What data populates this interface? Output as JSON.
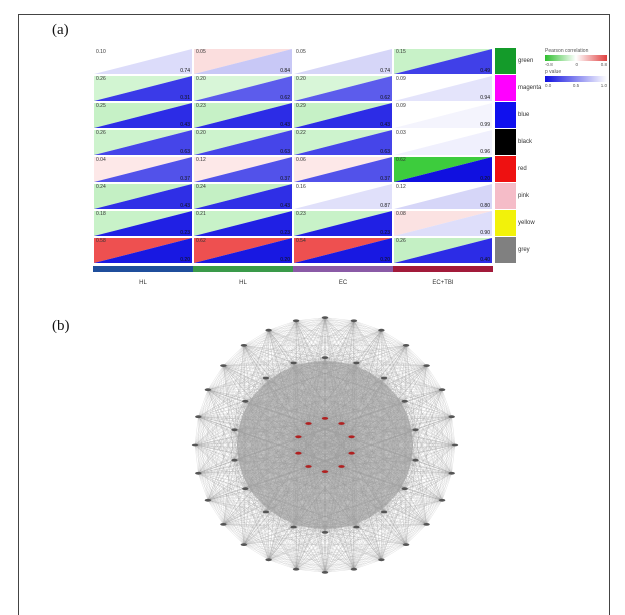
{
  "figure": {
    "panel_a_label": "(a)",
    "panel_b_label": "(b)"
  },
  "heatmap": {
    "columns": [
      {
        "label": "HL",
        "color": "#1f4e9c"
      },
      {
        "label": "HL",
        "color": "#3a9a4a"
      },
      {
        "label": "EC",
        "color": "#8a5aa6"
      },
      {
        "label": "EC+TBI",
        "color": "#a21a3a"
      }
    ],
    "modules": [
      {
        "name": "green",
        "color": "#149b2a"
      },
      {
        "name": "magenta",
        "color": "#ff00ff"
      },
      {
        "name": "blue",
        "color": "#1010ee"
      },
      {
        "name": "black",
        "color": "#000000"
      },
      {
        "name": "red",
        "color": "#ee1111"
      },
      {
        "name": "pink",
        "color": "#f5bcc8"
      },
      {
        "name": "yellow",
        "color": "#f2f20a"
      },
      {
        "name": "grey",
        "color": "#808080"
      }
    ],
    "cells": [
      [
        {
          "corr": "0.10",
          "p": "0.74",
          "tl": "#ffffff",
          "br": "#dcdcfa"
        },
        {
          "corr": "0.05",
          "p": "0.84",
          "tl": "#fbdede",
          "br": "#c8c8f6"
        },
        {
          "corr": "0.05",
          "p": "0.74",
          "tl": "#ffffff",
          "br": "#d6d6f8"
        },
        {
          "corr": "0.15",
          "p": "0.49",
          "tl": "#c8f2c8",
          "br": "#4040e8"
        }
      ],
      [
        {
          "corr": "0.26",
          "p": "0.31",
          "tl": "#d2f5d2",
          "br": "#3a3ae8"
        },
        {
          "corr": "0.20",
          "p": "0.62",
          "tl": "#d8f6d8",
          "br": "#5c5cec"
        },
        {
          "corr": "0.20",
          "p": "0.62",
          "tl": "#d8f6d8",
          "br": "#5c5cec"
        },
        {
          "corr": "0.09",
          "p": "0.94",
          "tl": "#ffffff",
          "br": "#e4e4fb"
        }
      ],
      [
        {
          "corr": "0.25",
          "p": "0.43",
          "tl": "#c6f1c6",
          "br": "#2c2ce6"
        },
        {
          "corr": "0.23",
          "p": "0.43",
          "tl": "#c6f1c6",
          "br": "#2c2ce6"
        },
        {
          "corr": "0.29",
          "p": "0.43",
          "tl": "#c6f1c6",
          "br": "#2c2ce6"
        },
        {
          "corr": "0.09",
          "p": "0.99",
          "tl": "#ffffff",
          "br": "#f4f4fd"
        }
      ],
      [
        {
          "corr": "0.26",
          "p": "0.63",
          "tl": "#cdf3cd",
          "br": "#4545e9"
        },
        {
          "corr": "0.20",
          "p": "0.63",
          "tl": "#cdf3cd",
          "br": "#4545e9"
        },
        {
          "corr": "0.22",
          "p": "0.63",
          "tl": "#cdf3cd",
          "br": "#4545e9"
        },
        {
          "corr": "0.03",
          "p": "0.96",
          "tl": "#ffffff",
          "br": "#f0f0fd"
        }
      ],
      [
        {
          "corr": "0.04",
          "p": "0.37",
          "tl": "#fde8e8",
          "br": "#5252ea"
        },
        {
          "corr": "0.12",
          "p": "0.37",
          "tl": "#fde8e8",
          "br": "#5252ea"
        },
        {
          "corr": "0.06",
          "p": "0.37",
          "tl": "#fde8e8",
          "br": "#5252ea"
        },
        {
          "corr": "0.62",
          "p": "0.20",
          "tl": "#3dcc3d",
          "br": "#1010e0"
        }
      ],
      [
        {
          "corr": "0.24",
          "p": "0.43",
          "tl": "#c4f0c4",
          "br": "#2f2fe6"
        },
        {
          "corr": "0.24",
          "p": "0.43",
          "tl": "#c4f0c4",
          "br": "#2f2fe6"
        },
        {
          "corr": "0.16",
          "p": "0.87",
          "tl": "#ffffff",
          "br": "#e0e0fa"
        },
        {
          "corr": "0.12",
          "p": "0.80",
          "tl": "#ffffff",
          "br": "#d6d6f8"
        }
      ],
      [
        {
          "corr": "0.18",
          "p": "0.23",
          "tl": "#c8f2c8",
          "br": "#2020e4"
        },
        {
          "corr": "0.21",
          "p": "0.23",
          "tl": "#c8f2c8",
          "br": "#2020e4"
        },
        {
          "corr": "0.23",
          "p": "0.23",
          "tl": "#c8f2c8",
          "br": "#2020e4"
        },
        {
          "corr": "0.08",
          "p": "0.90",
          "tl": "#fbe2e2",
          "br": "#dedefa"
        }
      ],
      [
        {
          "corr": "0.58",
          "p": "0.20",
          "tl": "#ee5050",
          "br": "#1818e2"
        },
        {
          "corr": "0.62",
          "p": "0.20",
          "tl": "#ee5050",
          "br": "#1818e2"
        },
        {
          "corr": "0.54",
          "p": "0.20",
          "tl": "#ee5050",
          "br": "#1818e2"
        },
        {
          "corr": "0.26",
          "p": "0.40",
          "tl": "#c4f0c4",
          "br": "#2c2ce6"
        }
      ]
    ],
    "legend": {
      "corr_title": "Pearson correlation",
      "corr_ticks": [
        "-0.8",
        "0",
        "0.8"
      ],
      "p_title": "p value",
      "p_ticks": [
        "0.0",
        "0.5",
        "1.0"
      ]
    }
  },
  "network": {
    "outer_nodes": 28,
    "middle_nodes": 18,
    "inner_nodes": 10,
    "node_color": "#555555",
    "hub_color": "#b02020",
    "edge_color": "#9a9a9a"
  }
}
